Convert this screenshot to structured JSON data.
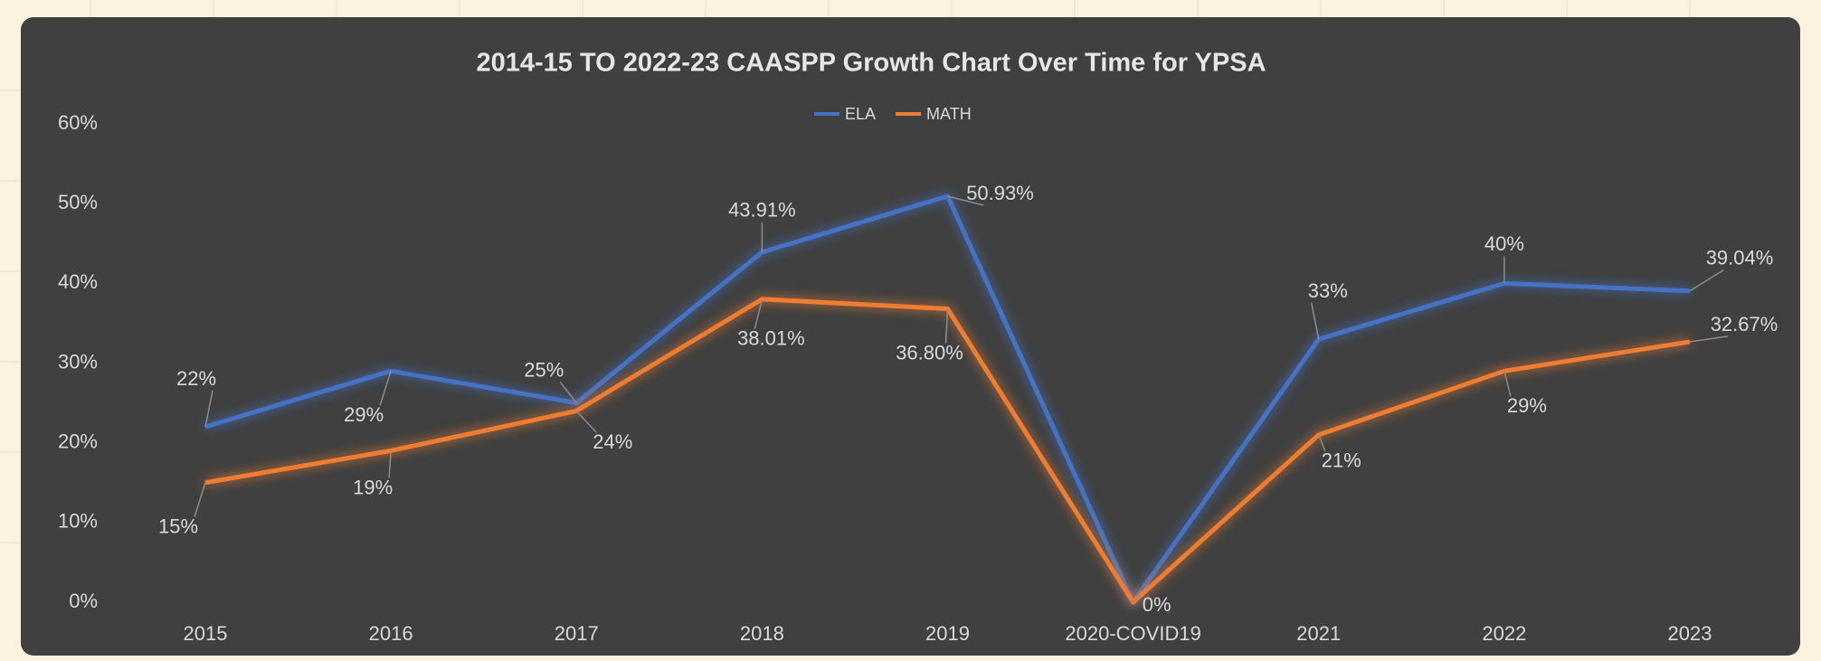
{
  "chart_data": {
    "type": "line",
    "title": "2014-15 TO 2022-23 CAASPP Growth Chart Over Time for YPSA",
    "categories": [
      "2015",
      "2016",
      "2017",
      "2018",
      "2019",
      "2020-COVID19",
      "2021",
      "2022",
      "2023"
    ],
    "series": [
      {
        "name": "ELA",
        "color": "#4472c4",
        "values": [
          22,
          29,
          25,
          43.91,
          50.93,
          0,
          33,
          40,
          39.04
        ],
        "value_labels": [
          "22%",
          "29%",
          "25%",
          "43.91%",
          "50.93%",
          null,
          "33%",
          "40%",
          "39.04%"
        ]
      },
      {
        "name": "MATH",
        "color": "#ed7d31",
        "values": [
          15,
          19,
          24,
          38.01,
          36.8,
          0,
          21,
          29,
          32.67
        ],
        "value_labels": [
          "15%",
          "19%",
          "24%",
          "38.01%",
          "36.80%",
          "0%",
          "21%",
          "29%",
          "32.67%"
        ]
      }
    ],
    "ylim": [
      0,
      60
    ],
    "yticks": [
      {
        "value": 0,
        "label": "0%"
      },
      {
        "value": 10,
        "label": "10%"
      },
      {
        "value": 20,
        "label": "20%"
      },
      {
        "value": 30,
        "label": "30%"
      },
      {
        "value": 40,
        "label": "40%"
      },
      {
        "value": 50,
        "label": "50%"
      },
      {
        "value": 60,
        "label": "60%"
      }
    ],
    "grid": false,
    "legend": "top"
  }
}
